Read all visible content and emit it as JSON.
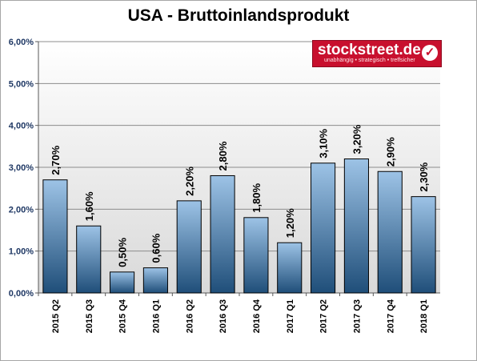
{
  "chart_data": {
    "type": "bar",
    "title": "USA - Bruttoinlandsprodukt",
    "categories": [
      "2015 Q2",
      "2015 Q3",
      "2015 Q4",
      "2016 Q1",
      "2016 Q2",
      "2016 Q3",
      "2016 Q4",
      "2017 Q1",
      "2017 Q2",
      "2017 Q3",
      "2017 Q4",
      "2018 Q1"
    ],
    "values": [
      2.7,
      1.6,
      0.5,
      0.6,
      2.2,
      2.8,
      1.8,
      1.2,
      3.1,
      3.2,
      2.9,
      2.3
    ],
    "data_labels": [
      "2,70%",
      "1,60%",
      "0,50%",
      "0,60%",
      "2,20%",
      "2,80%",
      "1,80%",
      "1,20%",
      "3,10%",
      "3,20%",
      "2,90%",
      "2,30%"
    ],
    "y_ticks": [
      "0,00%",
      "1,00%",
      "2,00%",
      "3,00%",
      "4,00%",
      "5,00%",
      "6,00%"
    ],
    "ylim": [
      0,
      6
    ],
    "grid": true,
    "xlabel": "",
    "ylabel": "",
    "colors": {
      "bar_top": "#9dc3e6",
      "bar_bottom": "#1f4e79",
      "tick_text": "#1f3864"
    }
  },
  "logo": {
    "name": "stockstreet.de",
    "tagline": "unabhängig • strategisch • treffsicher",
    "icon": "checkmark-icon"
  }
}
